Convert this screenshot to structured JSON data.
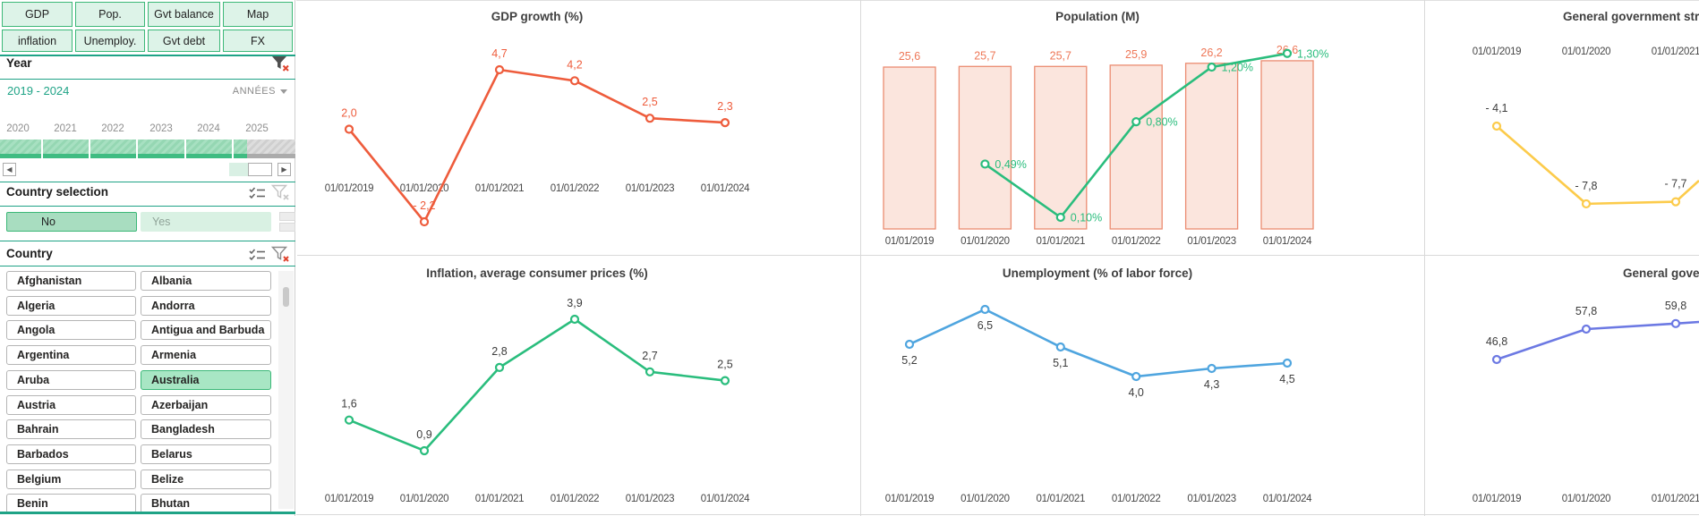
{
  "left_panel": {
    "nav_buttons": [
      "GDP",
      "inflation",
      "Pop.",
      "Unemploy.",
      "Gvt balance",
      "Gvt debt",
      "Map",
      "FX"
    ],
    "year": {
      "title": "Year",
      "range": "2019 - 2024",
      "field": "ANNÉES",
      "ticks": [
        "2020",
        "2021",
        "2022",
        "2023",
        "2024",
        "2025"
      ]
    },
    "country_selection": {
      "title": "Country selection",
      "no": "No",
      "yes": "Yes"
    },
    "country": {
      "title": "Country",
      "selected": "Australia",
      "items_left": [
        "Afghanistan",
        "Algeria",
        "Angola",
        "Argentina",
        "Aruba",
        "Austria",
        "Bahrain",
        "Barbados",
        "Belgium",
        "Benin"
      ],
      "items_right": [
        "Albania",
        "Andorra",
        "Antigua and Barbuda",
        "Armenia",
        "Australia",
        "Azerbaijan",
        "Bangladesh",
        "Belarus",
        "Belize",
        "Bhutan"
      ]
    }
  },
  "chart_data": [
    {
      "id": "gdp",
      "type": "line",
      "title": "GDP growth (%)",
      "x": [
        "01/01/2019",
        "01/01/2020",
        "01/01/2021",
        "01/01/2022",
        "01/01/2023",
        "01/01/2024"
      ],
      "values": [
        2.0,
        -2.2,
        4.7,
        4.2,
        2.5,
        2.3
      ],
      "point_labels": [
        "2,0",
        "- 2,2",
        "4,7",
        "4,2",
        "2,5",
        "2,3"
      ],
      "color": "#ee5c3c",
      "label_color": "#ee5c3c",
      "ylim": [
        -3,
        5.5
      ]
    },
    {
      "id": "population",
      "type": "bar+line",
      "title": "Population (M)",
      "x": [
        "01/01/2019",
        "01/01/2020",
        "01/01/2021",
        "01/01/2022",
        "01/01/2023",
        "01/01/2024"
      ],
      "series": [
        {
          "name": "population_millions",
          "type": "bar",
          "values": [
            25.6,
            25.7,
            25.7,
            25.9,
            26.2,
            26.6
          ],
          "labels": [
            "25,6",
            "25,7",
            "25,7",
            "25,9",
            "26,2",
            "26,6"
          ],
          "fill": "#fbe5dd",
          "stroke": "#eb8c71",
          "label_color": "#ee7757"
        },
        {
          "name": "growth_pct",
          "type": "line",
          "values": [
            null,
            0.49,
            0.1,
            0.8,
            1.2,
            1.3
          ],
          "labels": [
            "",
            "0,49%",
            "0,10%",
            "0,80%",
            "1,20%",
            "1,30%"
          ],
          "color": "#2abd7d"
        }
      ],
      "ylim_bars": [
        0,
        27
      ],
      "ylim_line": [
        0,
        1.5
      ]
    },
    {
      "id": "gov_structure",
      "type": "line",
      "title": "General government structu",
      "x": [
        "01/01/2019",
        "01/01/2020",
        "01/01/2021"
      ],
      "values": [
        -4.1,
        -7.8,
        -7.7
      ],
      "point_labels": [
        "- 4,1",
        "- 7,8",
        "- 7,7"
      ],
      "color": "#fccb4b",
      "label_color": "#3c3c3c",
      "x_axis_position": "top",
      "clipped_right": true,
      "ylim": [
        -9,
        0
      ]
    },
    {
      "id": "inflation",
      "type": "line",
      "title": "Inflation, average consumer prices (%)",
      "x": [
        "01/01/2019",
        "01/01/2020",
        "01/01/2021",
        "01/01/2022",
        "01/01/2023",
        "01/01/2024"
      ],
      "values": [
        1.6,
        0.9,
        2.8,
        3.9,
        2.7,
        2.5
      ],
      "point_labels": [
        "1,6",
        "0,9",
        "2,8",
        "3,9",
        "2,7",
        "2,5"
      ],
      "color": "#2abd7d",
      "label_color": "#3c3c3c",
      "ylim": [
        0,
        4.5
      ]
    },
    {
      "id": "unemployment",
      "type": "line",
      "title": "Unemployment (% of labor force)",
      "x": [
        "01/01/2019",
        "01/01/2020",
        "01/01/2021",
        "01/01/2022",
        "01/01/2023",
        "01/01/2024"
      ],
      "values": [
        5.2,
        6.5,
        5.1,
        4.0,
        4.3,
        4.5
      ],
      "point_labels": [
        "5,2",
        "6,5",
        "5,1",
        "4,0",
        "4,3",
        "4,5"
      ],
      "color": "#4fa5df",
      "label_color": "#3c3c3c",
      "label_position": "below",
      "ylim": [
        3,
        7.5
      ]
    },
    {
      "id": "gov_debt",
      "type": "line",
      "title": "General governm",
      "x": [
        "01/01/2019",
        "01/01/2020",
        "01/01/2021"
      ],
      "values": [
        46.8,
        57.8,
        59.8
      ],
      "point_labels": [
        "46,8",
        "57,8",
        "59,8"
      ],
      "color": "#6c79e3",
      "label_color": "#3c3c3c",
      "clipped_right": true,
      "ylim": [
        0,
        70
      ]
    }
  ]
}
